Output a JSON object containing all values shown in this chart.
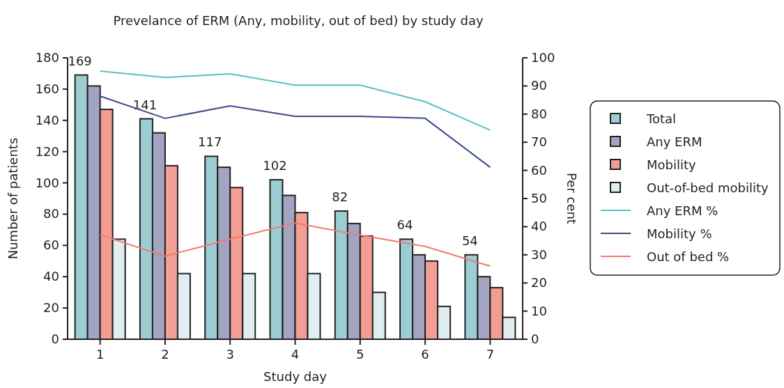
{
  "chart_data": {
    "type": "bar",
    "title": "Prevelance of ERM (Any, mobility, out of bed) by study day",
    "xlabel": "Study day",
    "ylabel": "Number of patients",
    "y2label": "Per cent",
    "categories": [
      "1",
      "2",
      "3",
      "4",
      "5",
      "6",
      "7"
    ],
    "ylim": [
      0,
      180
    ],
    "yticks": [
      0,
      20,
      40,
      60,
      80,
      100,
      120,
      140,
      160,
      180
    ],
    "y2lim": [
      0,
      100
    ],
    "y2ticks": [
      0,
      10,
      20,
      30,
      40,
      50,
      60,
      70,
      80,
      90,
      100
    ],
    "grid": false,
    "legend": "right",
    "line_style": "solid",
    "marker": "none",
    "series": [
      {
        "name": "Total",
        "color": "#9ccdd2",
        "values": [
          169,
          141,
          117,
          102,
          82,
          64,
          54
        ],
        "value_labels": [
          "169",
          "141",
          "117",
          "102",
          "82",
          "64",
          "54"
        ]
      },
      {
        "name": "Any ERM",
        "color": "#a3a3c2",
        "values": [
          162,
          132,
          110,
          92,
          74,
          54,
          40
        ]
      },
      {
        "name": "Mobility",
        "color": "#f29e94",
        "values": [
          147,
          111,
          97,
          81,
          66,
          50,
          33
        ]
      },
      {
        "name": "Out-of-bed mobility",
        "color": "#e0eef2",
        "values": [
          64,
          42,
          42,
          42,
          30,
          21,
          14
        ]
      },
      {
        "name": "Any ERM %",
        "type": "line",
        "axis": "y2",
        "color": "#5fbfc0",
        "values": [
          95.3,
          93,
          94.3,
          90.3,
          90.3,
          84.4,
          74.3
        ]
      },
      {
        "name": "Mobility %",
        "type": "line",
        "axis": "y2",
        "color": "#3b4a8a",
        "values": [
          86.4,
          78.5,
          82.9,
          79.2,
          79.2,
          78.5,
          61.1
        ]
      },
      {
        "name": "Out of bed %",
        "type": "line",
        "axis": "y2",
        "color": "#f07a6e",
        "values": [
          37.1,
          29.5,
          35.6,
          41.3,
          37,
          33,
          26
        ]
      }
    ]
  }
}
